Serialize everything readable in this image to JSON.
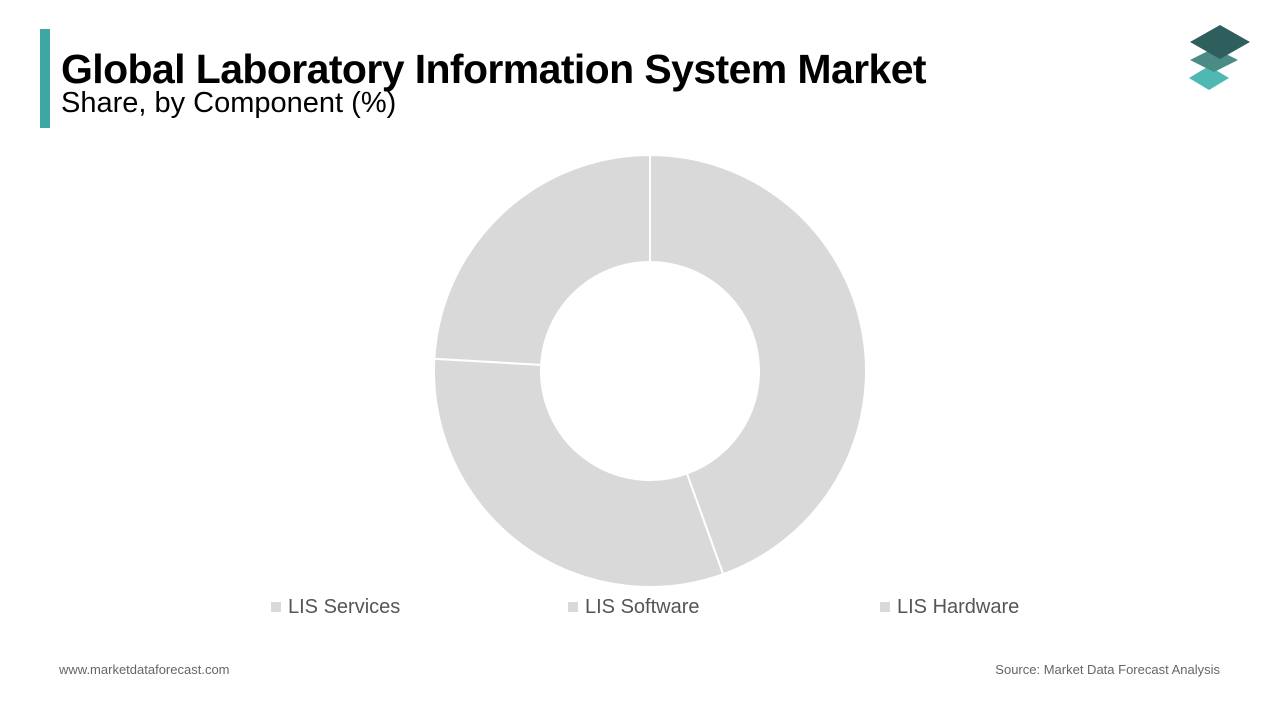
{
  "header": {
    "title": "Global Laboratory Information System Market",
    "subtitle": "Share, by Component (%)",
    "accent_color": "#3ea7a3"
  },
  "logo": {
    "icon": "stacked-layers-icon",
    "colors": [
      "#2f5f5c",
      "#4a8b86",
      "#4fb8b2"
    ]
  },
  "chart_data": {
    "type": "pie",
    "variant": "donut",
    "categories": [
      "LIS Services",
      "LIS Software",
      "LIS Hardware"
    ],
    "values": [
      44.5,
      31.4,
      24.1
    ],
    "colors": [
      "#d9d9d9",
      "#d9d9d9",
      "#d9d9d9"
    ],
    "legend": "bottom",
    "segment_order_clockwise_from_top": [
      "LIS Services",
      "LIS Software",
      "LIS Hardware"
    ]
  },
  "legend": {
    "items": [
      {
        "label": "LIS Services",
        "color": "#d9d9d9"
      },
      {
        "label": "LIS Software",
        "color": "#d9d9d9"
      },
      {
        "label": "LIS Hardware",
        "color": "#d9d9d9"
      }
    ]
  },
  "footer": {
    "website": "www.marketdataforecast.com",
    "source": "Source: Market Data Forecast Analysis"
  }
}
